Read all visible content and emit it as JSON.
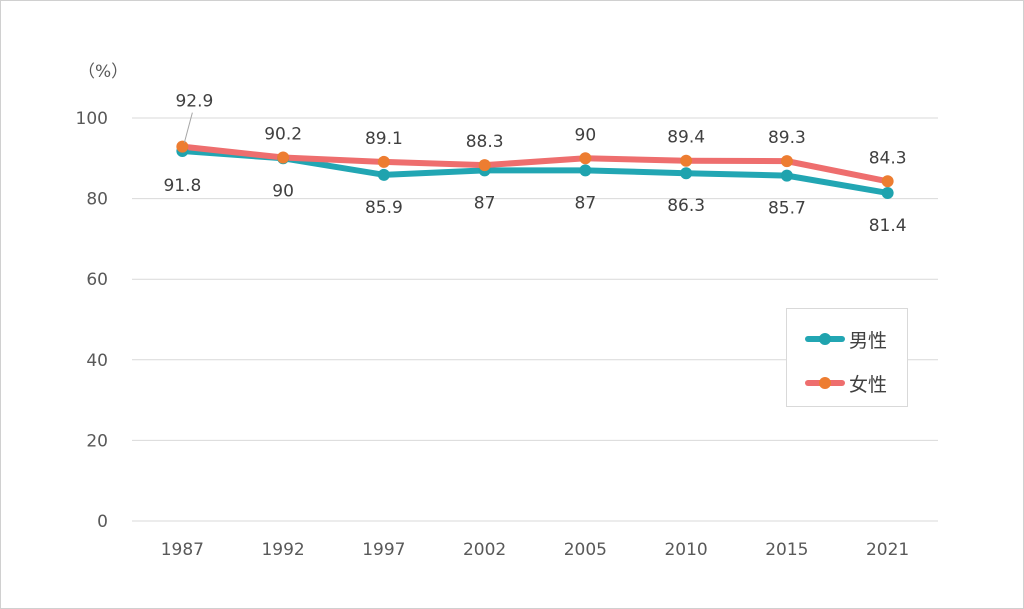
{
  "chart_data": {
    "type": "line",
    "y_unit_label": "（%）",
    "categories": [
      "1987",
      "1992",
      "1997",
      "2002",
      "2005",
      "2010",
      "2015",
      "2021"
    ],
    "ylim": [
      0,
      100
    ],
    "yticks": [
      0,
      20,
      40,
      60,
      80,
      100
    ],
    "grid": true,
    "legend_position": "right",
    "series": [
      {
        "name": "男性",
        "values": [
          91.8,
          90,
          85.9,
          87,
          87,
          86.3,
          85.7,
          81.4
        ],
        "line_color": "#22A6B3",
        "marker_color": "#1FA3AE",
        "label_position": "below"
      },
      {
        "name": "女性",
        "values": [
          92.9,
          90.2,
          89.1,
          88.3,
          90,
          89.4,
          89.3,
          84.3
        ],
        "line_color": "#EE6E6E",
        "marker_color": "#ED7D31",
        "label_position": "above"
      }
    ]
  }
}
